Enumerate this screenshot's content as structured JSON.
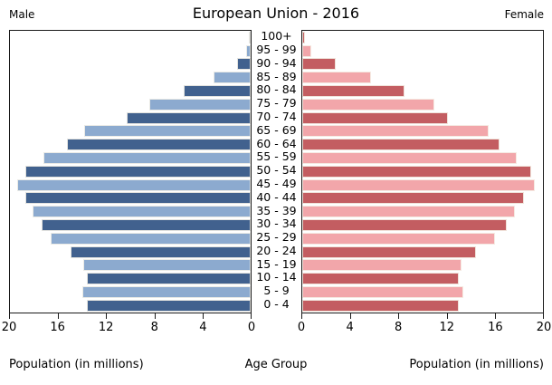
{
  "title": "European Union - 2016",
  "male_label": "Male",
  "female_label": "Female",
  "captions": {
    "left": "Population (in millions)",
    "center": "Age Group",
    "right": "Population (in millions)"
  },
  "colors": {
    "male_dark": "#41618e",
    "male_light": "#8caacf",
    "female_dark": "#c35d61",
    "female_light": "#f2a6aa",
    "plot_border": "#1a1a1a",
    "background": "#ffffff"
  },
  "axis": {
    "max": 20,
    "ticks_male": [
      20,
      16,
      12,
      8,
      4,
      0
    ],
    "ticks_female": [
      0,
      4,
      8,
      12,
      16,
      20
    ]
  },
  "chart_data": {
    "type": "bar",
    "subtype": "population-pyramid",
    "title": "European Union - 2016",
    "xlabel": "Population (in millions)",
    "center_label": "Age Group",
    "xlim": [
      0,
      20
    ],
    "grid": false,
    "orientation": "horizontal",
    "categories": [
      "100+",
      "95 - 99",
      "90 - 94",
      "85 - 89",
      "80 - 84",
      "75 - 79",
      "70 - 74",
      "65 - 69",
      "60 - 64",
      "55 - 59",
      "50 - 54",
      "45 - 49",
      "40 - 44",
      "35 - 39",
      "30 - 34",
      "25 - 29",
      "20 - 24",
      "15 - 19",
      "10 - 14",
      "5 - 9",
      "0 - 4"
    ],
    "series": [
      {
        "name": "Male",
        "side": "left",
        "values": [
          0.1,
          0.4,
          1.1,
          3.1,
          5.6,
          8.4,
          10.3,
          13.8,
          15.3,
          17.2,
          18.7,
          19.4,
          18.7,
          18.1,
          17.4,
          16.6,
          15.0,
          13.9,
          13.6,
          14.0,
          13.6
        ]
      },
      {
        "name": "Female",
        "side": "right",
        "values": [
          0.2,
          0.75,
          2.8,
          5.7,
          8.5,
          11.0,
          12.1,
          15.5,
          16.4,
          17.8,
          19.0,
          19.3,
          18.4,
          17.7,
          17.0,
          16.0,
          14.4,
          13.2,
          13.0,
          13.4,
          13.0
        ]
      }
    ]
  }
}
